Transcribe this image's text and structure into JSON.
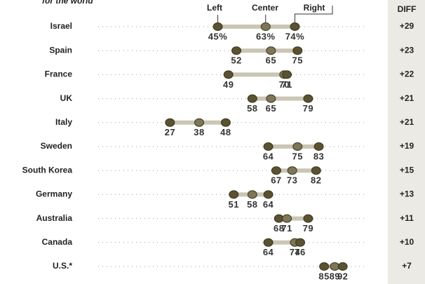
{
  "chart_data": {
    "type": "dot",
    "subtitle": "for the world",
    "categories": [
      "Israel",
      "Spain",
      "France",
      "UK",
      "Italy",
      "Sweden",
      "South Korea",
      "Germany",
      "Australia",
      "Canada",
      "U.S.*"
    ],
    "series": [
      {
        "name": "Left",
        "color": "#5a5230",
        "values": [
          45,
          52,
          49,
          58,
          27,
          64,
          67,
          51,
          68,
          64,
          85
        ],
        "value_labels": [
          "45%",
          "52",
          "49",
          "58",
          "27",
          "64",
          "67",
          "51",
          "68",
          "64",
          "85"
        ]
      },
      {
        "name": "Center",
        "color": "#7d7658",
        "values": [
          63,
          65,
          70,
          65,
          38,
          75,
          73,
          58,
          71,
          74,
          89
        ],
        "value_labels": [
          "63%",
          "65",
          "70",
          "65",
          "38",
          "75",
          "73",
          "58",
          "71",
          "74",
          "89"
        ]
      },
      {
        "name": "Right",
        "color": "#5a5230",
        "values": [
          74,
          75,
          71,
          79,
          48,
          83,
          82,
          64,
          79,
          76,
          92
        ],
        "value_labels": [
          "74%",
          "75",
          "71",
          "79",
          "48",
          "83",
          "82",
          "64",
          "79",
          "76",
          "92"
        ]
      }
    ],
    "diff": {
      "label": "DIFF",
      "values": [
        29,
        23,
        22,
        21,
        21,
        19,
        15,
        13,
        11,
        10,
        7
      ],
      "value_labels": [
        "+29",
        "+23",
        "+22",
        "+21",
        "+21",
        "+19",
        "+15",
        "+13",
        "+11",
        "+10",
        "+7"
      ]
    },
    "xlim": [
      0,
      100
    ],
    "range_color": "#cac6b4"
  }
}
